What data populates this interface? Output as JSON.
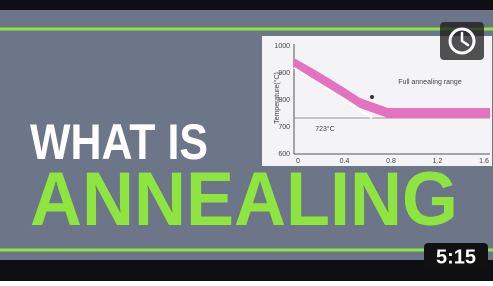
{
  "thumbnail": {
    "headline": [
      "WHAT IS",
      "ANNEALING"
    ],
    "duration": "5:15",
    "inset": {
      "y_axis_label": "Temperature(°C)",
      "y_tick_labels": [
        "1000",
        "900",
        "800",
        "700",
        "600"
      ],
      "x_tick_labels": [
        "0",
        "0.4",
        "0.8",
        "1.2",
        "1.6"
      ],
      "annotation": "Full annealing range",
      "temperature_label": "723°C"
    }
  }
}
